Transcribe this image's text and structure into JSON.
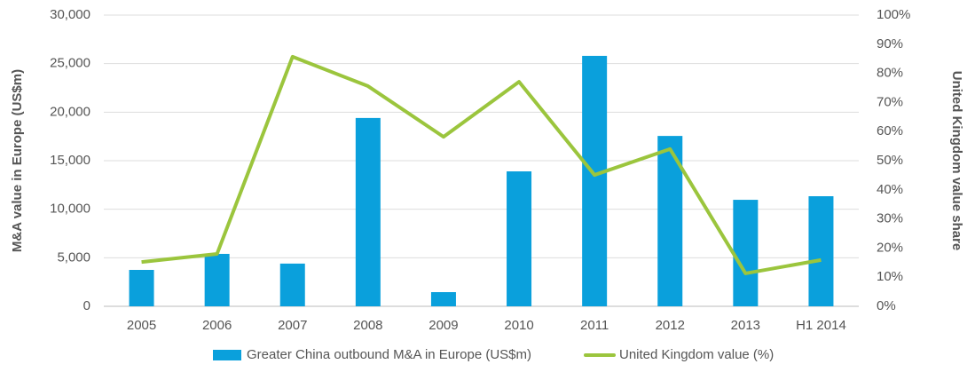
{
  "chart_data": {
    "type": "bar_line",
    "categories": [
      "2005",
      "2006",
      "2007",
      "2008",
      "2009",
      "2010",
      "2011",
      "2012",
      "2013",
      "H1 2014"
    ],
    "ylabel": "M&A value in Europe (US$m)",
    "y2label": "United Kingdom value share",
    "ylim": [
      0,
      30000
    ],
    "yticks": [
      0,
      {
        "value": 5000,
        "label": "5,000"
      },
      {
        "value": 10000,
        "label": "10,000"
      },
      {
        "value": 15000,
        "label": "15,000"
      },
      {
        "value": 20000,
        "label": "20,000"
      },
      {
        "value": 25000,
        "label": "25,000"
      },
      {
        "value": 30000,
        "label": "30,000"
      }
    ],
    "y2lim": [
      0,
      100
    ],
    "y2ticks": [
      {
        "value": 0,
        "label": "0%"
      },
      {
        "value": 10,
        "label": "10%"
      },
      {
        "value": 20,
        "label": "20%"
      },
      {
        "value": 30,
        "label": "30%"
      },
      {
        "value": 40,
        "label": "40%"
      },
      {
        "value": 50,
        "label": "50%"
      },
      {
        "value": 60,
        "label": "60%"
      },
      {
        "value": 70,
        "label": "70%"
      },
      {
        "value": 80,
        "label": "80%"
      },
      {
        "value": 90,
        "label": "90%"
      },
      {
        "value": 100,
        "label": "100%"
      }
    ],
    "grid": true,
    "legend": "bottom",
    "series": [
      {
        "name": "Greater China outbound M&A in Europe (US$m)",
        "type": "bar",
        "color": "#0aa0dc",
        "values": [
          3750,
          5400,
          4400,
          19400,
          1460,
          13900,
          25800,
          17550,
          10970,
          11340
        ]
      },
      {
        "name": "United Kingdom value (%)",
        "type": "line",
        "axis": "y2",
        "color": "#9bc53d",
        "values": [
          15.2,
          18,
          85.7,
          75.6,
          58.2,
          77.1,
          45.1,
          54,
          11.3,
          15.9
        ]
      }
    ]
  }
}
